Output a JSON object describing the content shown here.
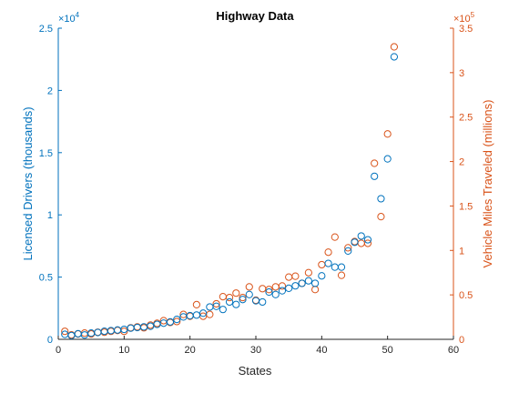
{
  "chart_data": {
    "type": "scatter",
    "title": "Highway Data",
    "xlabel": "States",
    "ylabel_left": "Licensed Drivers (thousands)",
    "ylabel_right": "Vehicle Miles Traveled (millions)",
    "left_exponent_label": "×10",
    "left_exponent_power": "4",
    "right_exponent_label": "×10",
    "right_exponent_power": "5",
    "xlim": [
      0,
      60
    ],
    "ylim_left": [
      0,
      25000
    ],
    "ylim_right": [
      0,
      350000
    ],
    "x_ticks": [
      0,
      10,
      20,
      30,
      40,
      50,
      60
    ],
    "x_tick_labels": [
      "0",
      "10",
      "20",
      "30",
      "40",
      "50",
      "60"
    ],
    "y_left_ticks": [
      0,
      5000,
      10000,
      15000,
      20000,
      25000
    ],
    "y_left_tick_labels": [
      "0",
      "0.5",
      "1",
      "1.5",
      "2",
      "2.5"
    ],
    "y_right_ticks": [
      0,
      50000,
      100000,
      150000,
      200000,
      250000,
      300000,
      350000
    ],
    "y_right_tick_labels": [
      "0",
      "0.5",
      "1",
      "1.5",
      "2",
      "2.5",
      "3",
      "3.5"
    ],
    "grid": false,
    "colors": {
      "left": "#0072BD",
      "right": "#D95319",
      "axis": "#262626"
    },
    "x": [
      1,
      2,
      3,
      4,
      5,
      6,
      7,
      8,
      9,
      10,
      11,
      12,
      13,
      14,
      15,
      16,
      17,
      18,
      19,
      20,
      21,
      22,
      23,
      24,
      25,
      26,
      27,
      28,
      29,
      30,
      31,
      32,
      33,
      34,
      35,
      36,
      37,
      38,
      39,
      40,
      41,
      42,
      43,
      44,
      45,
      46,
      47,
      48,
      49,
      50,
      51
    ],
    "series": [
      {
        "axis": "left",
        "values": [
          400,
          300,
          450,
          350,
          500,
          550,
          650,
          700,
          750,
          800,
          900,
          950,
          1000,
          1050,
          1200,
          1300,
          1400,
          1600,
          1800,
          1900,
          1950,
          2100,
          2600,
          2650,
          2400,
          3000,
          2800,
          3200,
          3600,
          3100,
          3000,
          3800,
          3600,
          3900,
          4100,
          4300,
          4500,
          4700,
          4500,
          5100,
          6100,
          5800,
          5800,
          7100,
          7800,
          8300,
          8000,
          13100,
          11300,
          14500,
          22700
        ]
      },
      {
        "axis": "right",
        "values": [
          9000,
          5000,
          6000,
          7000,
          6000,
          8000,
          8000,
          9000,
          10000,
          9000,
          13000,
          14000,
          13000,
          16000,
          18000,
          21000,
          19000,
          20000,
          28000,
          26000,
          39000,
          26000,
          28000,
          40000,
          48000,
          47000,
          52000,
          47000,
          59000,
          44000,
          57000,
          56000,
          59000,
          60000,
          70000,
          71000,
          63000,
          75000,
          56000,
          84000,
          98000,
          115000,
          72000,
          103000,
          110000,
          108000,
          108000,
          198000,
          138000,
          231000,
          329000
        ]
      }
    ]
  }
}
